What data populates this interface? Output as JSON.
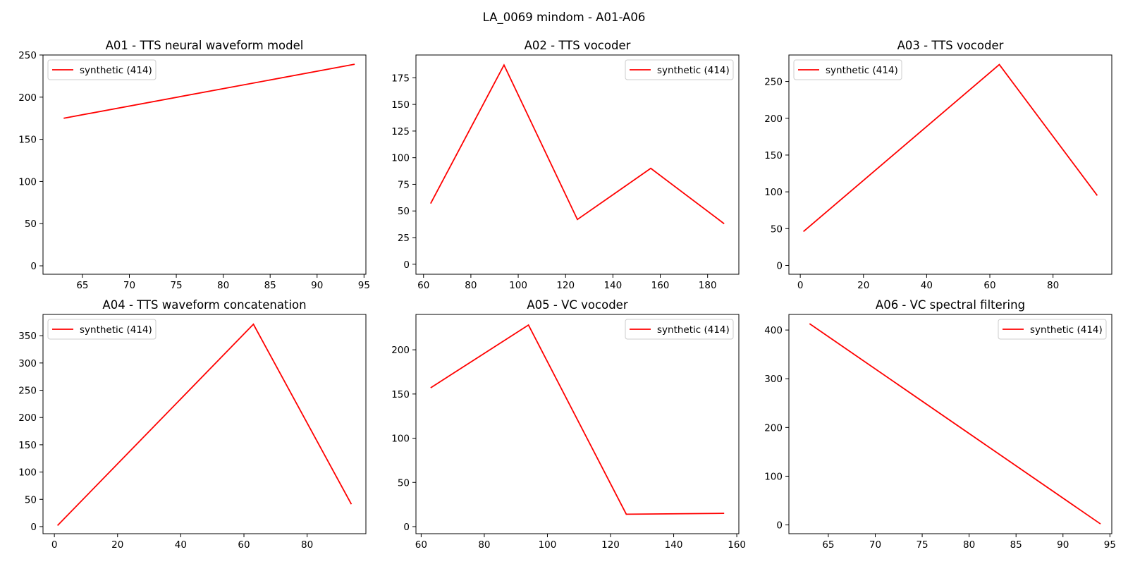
{
  "figure_title": "LA_0069 mindom - A01-A06",
  "line_color": "#ff0000",
  "chart_data": [
    {
      "type": "line",
      "title": "A01 - TTS neural waveform model",
      "xlim": [
        60.8,
        95.2
      ],
      "ylim": [
        -10,
        250
      ],
      "xticks": [
        65,
        70,
        75,
        80,
        85,
        90,
        95
      ],
      "yticks": [
        0,
        50,
        100,
        150,
        200,
        250
      ],
      "legend_position": "upper left",
      "series": [
        {
          "name": "synthetic (414)",
          "x": [
            63,
            94
          ],
          "y": [
            175,
            239
          ]
        }
      ]
    },
    {
      "type": "line",
      "title": "A02 - TTS vocoder",
      "xlim": [
        56.8,
        193.2
      ],
      "ylim": [
        -9.4,
        196.4
      ],
      "xticks": [
        60,
        80,
        100,
        120,
        140,
        160,
        180
      ],
      "yticks": [
        0,
        25,
        50,
        75,
        100,
        125,
        150,
        175
      ],
      "legend_position": "upper right",
      "series": [
        {
          "name": "synthetic (414)",
          "x": [
            63,
            94,
            125,
            156,
            187
          ],
          "y": [
            57,
            187,
            42,
            90,
            38
          ]
        }
      ]
    },
    {
      "type": "line",
      "title": "A03 - TTS vocoder",
      "xlim": [
        -3.6,
        98.6
      ],
      "ylim": [
        -12,
        286
      ],
      "xticks": [
        0,
        20,
        40,
        60,
        80
      ],
      "yticks": [
        0,
        50,
        100,
        150,
        200,
        250
      ],
      "legend_position": "upper left",
      "series": [
        {
          "name": "synthetic (414)",
          "x": [
            1,
            63,
            94
          ],
          "y": [
            46,
            273,
            95
          ]
        }
      ]
    },
    {
      "type": "line",
      "title": "A04 - TTS waveform concatenation",
      "xlim": [
        -3.6,
        98.6
      ],
      "ylim": [
        -13,
        389
      ],
      "xticks": [
        0,
        20,
        40,
        60,
        80
      ],
      "yticks": [
        0,
        50,
        100,
        150,
        200,
        250,
        300,
        350
      ],
      "legend_position": "upper left",
      "series": [
        {
          "name": "synthetic (414)",
          "x": [
            1,
            63,
            94
          ],
          "y": [
            2,
            371,
            41
          ]
        }
      ]
    },
    {
      "type": "line",
      "title": "A05 - VC vocoder",
      "xlim": [
        58.35,
        160.65
      ],
      "ylim": [
        -8,
        240
      ],
      "xticks": [
        60,
        80,
        100,
        120,
        140,
        160
      ],
      "yticks": [
        0,
        50,
        100,
        150,
        200
      ],
      "legend_position": "upper right",
      "series": [
        {
          "name": "synthetic (414)",
          "x": [
            63,
            94,
            125,
            156
          ],
          "y": [
            157,
            228,
            14,
            15
          ]
        }
      ]
    },
    {
      "type": "line",
      "title": "A06 - VC spectral filtering",
      "xlim": [
        60.8,
        95.2
      ],
      "ylim": [
        -18,
        432
      ],
      "xticks": [
        65,
        70,
        75,
        80,
        85,
        90,
        95
      ],
      "yticks": [
        0,
        100,
        200,
        300,
        400
      ],
      "legend_position": "upper right",
      "series": [
        {
          "name": "synthetic (414)",
          "x": [
            63,
            94
          ],
          "y": [
            413,
            2
          ]
        }
      ]
    }
  ]
}
